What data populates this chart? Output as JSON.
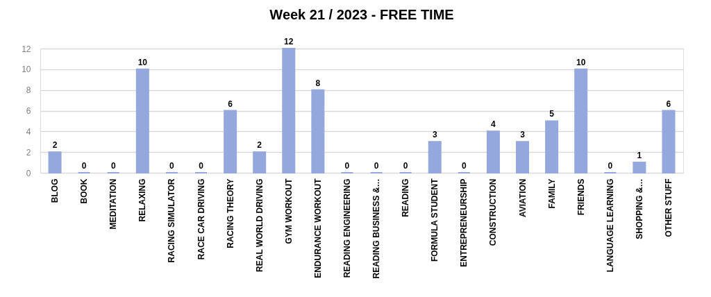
{
  "chart_data": {
    "type": "bar",
    "title": "Week 21 / 2023 - FREE TIME",
    "categories": [
      "BLOG",
      "BOOK",
      "MEDITATION",
      "RELAXING",
      "RACING SIMULATOR",
      "RACE CAR DRIVING",
      "RACING THEORY",
      "REAL WORLD DRIVING",
      "GYM WORKOUT",
      "ENDURANCE WORKOUT",
      "READING ENGINEERING",
      "READING BUSINESS &…",
      "READING",
      "FORMULA STUDENT",
      "ENTREPRENEURSHIP",
      "CONSTRUCTION",
      "AVIATION",
      "FAMILY",
      "FRIENDS",
      "LANGUAGE LEARNING",
      "SHOPPING &…",
      "OTHER STUFF"
    ],
    "values": [
      2,
      0,
      0,
      10,
      0,
      0,
      6,
      2,
      12,
      8,
      0,
      0,
      0,
      3,
      0,
      4,
      3,
      5,
      10,
      0,
      1,
      6
    ],
    "color": "#95a8de",
    "ylim": [
      0,
      12
    ],
    "yticks": [
      0,
      2,
      4,
      6,
      8,
      10,
      12
    ],
    "grid": "y",
    "data_labels": true
  }
}
